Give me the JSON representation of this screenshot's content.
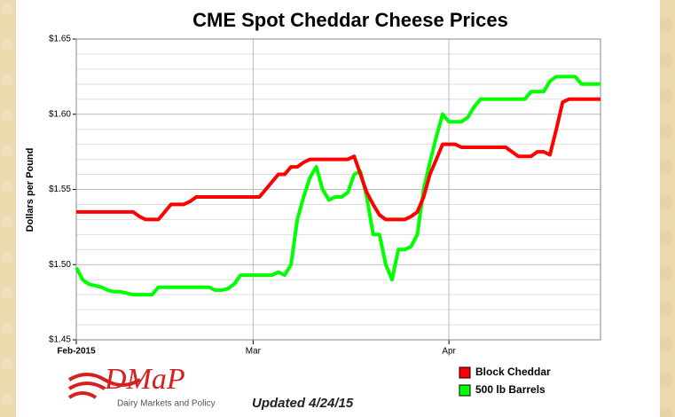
{
  "chart_data": {
    "type": "line",
    "title": "CME Spot Cheddar Cheese Prices",
    "y_label": "Dollars per Pound",
    "categories": [
      "Feb-2015",
      null,
      null,
      null,
      null,
      null,
      null,
      null,
      null,
      null,
      null,
      null,
      null,
      null,
      null,
      null,
      null,
      null,
      null,
      null,
      null,
      null,
      null,
      null,
      null,
      null,
      null,
      null,
      "Mar",
      null,
      null,
      null,
      null,
      null,
      null,
      null,
      null,
      null,
      null,
      null,
      null,
      null,
      null,
      null,
      null,
      null,
      null,
      null,
      null,
      null,
      null,
      null,
      null,
      null,
      null,
      null,
      null,
      null,
      null,
      "Apr",
      null,
      null,
      null,
      null,
      null,
      null,
      null,
      null,
      null,
      null,
      null,
      null,
      null,
      null,
      null,
      null,
      null,
      null,
      null,
      null,
      null,
      null,
      null,
      null
    ],
    "series": [
      {
        "name": "Block Cheddar",
        "color": "#ff0000",
        "values": [
          1.535,
          1.535,
          1.535,
          1.535,
          1.535,
          1.535,
          1.535,
          1.535,
          1.535,
          1.535,
          1.532,
          1.53,
          1.53,
          1.53,
          1.535,
          1.54,
          1.54,
          1.54,
          1.542,
          1.545,
          1.545,
          1.545,
          1.545,
          1.545,
          1.545,
          1.545,
          1.545,
          1.545,
          1.545,
          1.545,
          1.55,
          1.555,
          1.56,
          1.56,
          1.565,
          1.565,
          1.568,
          1.57,
          1.57,
          1.57,
          1.57,
          1.57,
          1.57,
          1.57,
          1.572,
          1.56,
          1.548,
          1.54,
          1.533,
          1.53,
          1.53,
          1.53,
          1.53,
          1.532,
          1.535,
          1.545,
          1.56,
          1.57,
          1.58,
          1.58,
          1.58,
          1.578,
          1.578,
          1.578,
          1.578,
          1.578,
          1.578,
          1.578,
          1.578,
          1.575,
          1.572,
          1.572,
          1.572,
          1.575,
          1.575,
          1.573,
          1.59,
          1.608,
          1.61,
          1.61,
          1.61,
          1.61,
          1.61,
          1.61
        ]
      },
      {
        "name": "500 lb Barrels",
        "color": "#00ff00",
        "values": [
          1.498,
          1.49,
          1.487,
          1.486,
          1.485,
          1.483,
          1.482,
          1.482,
          1.481,
          1.48,
          1.48,
          1.48,
          1.48,
          1.485,
          1.485,
          1.485,
          1.485,
          1.485,
          1.485,
          1.485,
          1.485,
          1.485,
          1.483,
          1.483,
          1.484,
          1.487,
          1.493,
          1.493,
          1.493,
          1.493,
          1.493,
          1.493,
          1.495,
          1.493,
          1.5,
          1.53,
          1.545,
          1.558,
          1.565,
          1.55,
          1.543,
          1.545,
          1.545,
          1.548,
          1.56,
          1.562,
          1.545,
          1.52,
          1.52,
          1.5,
          1.49,
          1.51,
          1.51,
          1.512,
          1.52,
          1.55,
          1.568,
          1.585,
          1.6,
          1.595,
          1.595,
          1.595,
          1.598,
          1.605,
          1.61,
          1.61,
          1.61,
          1.61,
          1.61,
          1.61,
          1.61,
          1.61,
          1.615,
          1.615,
          1.615,
          1.622,
          1.625,
          1.625,
          1.625,
          1.625,
          1.62,
          1.62,
          1.62,
          1.62
        ]
      }
    ],
    "ylim": [
      1.45,
      1.65
    ],
    "yticks": [
      {
        "value": 1.45,
        "label": "$1.45"
      },
      {
        "value": 1.5,
        "label": "$1.50"
      },
      {
        "value": 1.55,
        "label": "$1.55"
      },
      {
        "value": 1.6,
        "label": "$1.60"
      },
      {
        "value": 1.65,
        "label": "$1.65"
      }
    ],
    "minor_yticks": [
      1.46,
      1.47,
      1.48,
      1.49,
      1.51,
      1.52,
      1.53,
      1.54,
      1.56,
      1.57,
      1.58,
      1.59,
      1.61,
      1.62,
      1.63,
      1.64
    ],
    "grid": true,
    "legend": "bottom-right",
    "logo": {
      "name": "DMaP",
      "tagline": "Dairy Markets and Policy"
    },
    "note": "Updated 4/24/15"
  }
}
